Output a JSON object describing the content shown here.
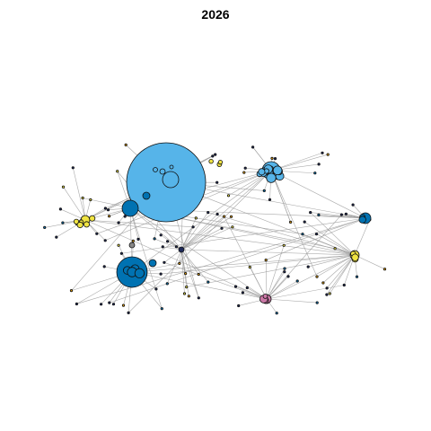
{
  "title": "2026",
  "colors": {
    "light_blue": "#56B4E9",
    "dark_blue": "#0072B2",
    "yellow": "#F0E442",
    "pink": "#CC79A7",
    "navy": "#1f2a5a",
    "orange": "#E69F00",
    "edge": "#9a9a9a"
  }
}
